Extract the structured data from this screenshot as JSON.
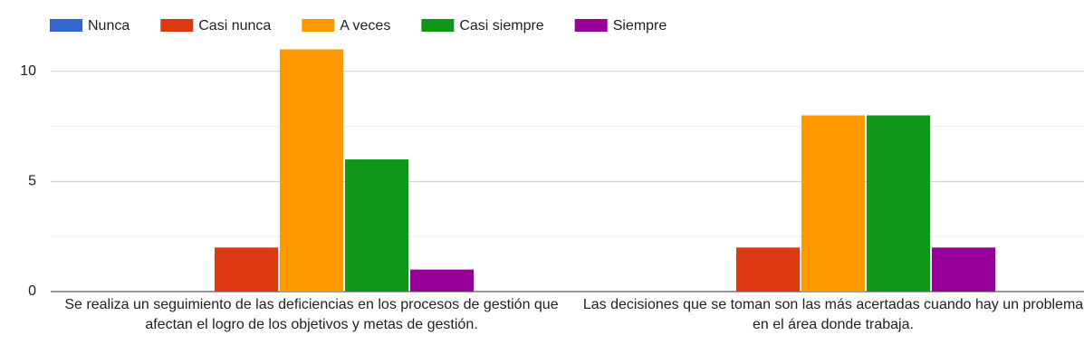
{
  "chart_data": {
    "type": "bar",
    "categories": [
      "Se realiza un seguimiento de las deficiencias en los procesos de gestión que afectan el logro de los objetivos y metas de gestión.",
      "Las decisiones que se toman son las más acertadas cuando hay un problema en el área donde trabaja."
    ],
    "series": [
      {
        "name": "Nunca",
        "color": "#3366cc",
        "values": [
          0,
          0
        ]
      },
      {
        "name": "Casi nunca",
        "color": "#dc3912",
        "values": [
          2,
          2
        ]
      },
      {
        "name": "A veces",
        "color": "#ff9900",
        "values": [
          11,
          8
        ]
      },
      {
        "name": "Casi siempre",
        "color": "#109618",
        "values": [
          6,
          8
        ]
      },
      {
        "name": "Siempre",
        "color": "#990099",
        "values": [
          1,
          2
        ]
      }
    ],
    "ylim": [
      0,
      12.5
    ],
    "yticks": [
      0,
      5,
      10
    ],
    "minor_yticks": [
      2.5,
      7.5
    ],
    "grid": true,
    "legend": "top"
  }
}
